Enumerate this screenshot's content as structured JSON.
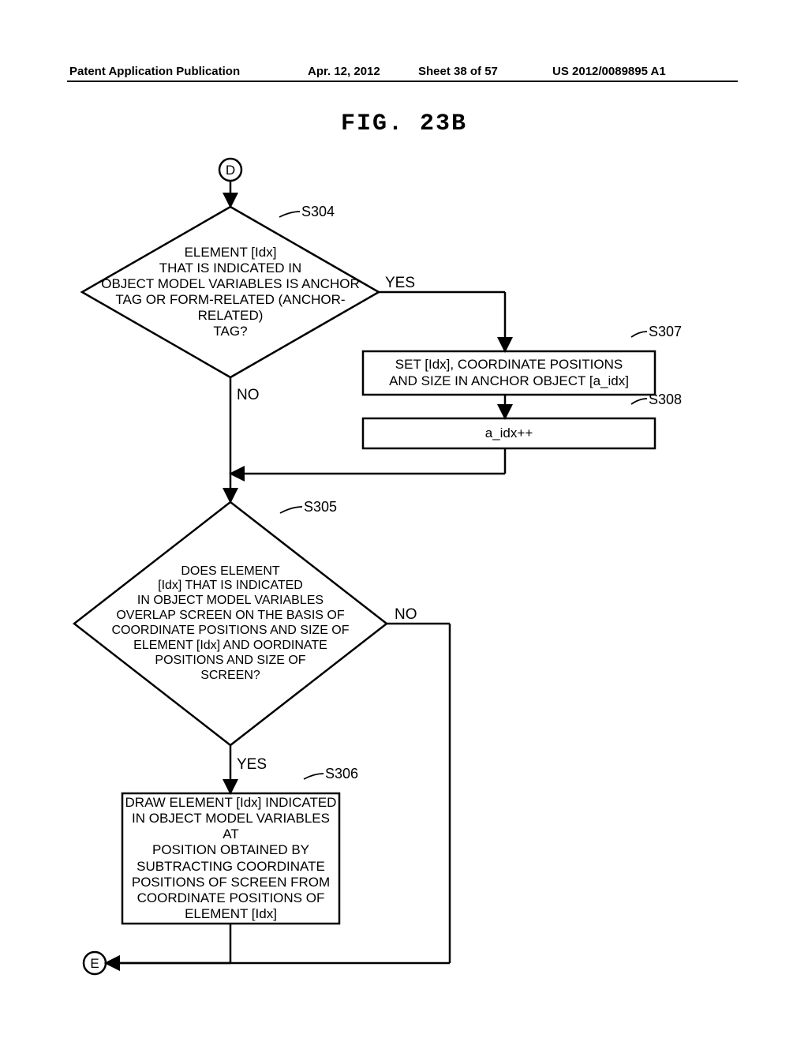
{
  "header": {
    "publication_label": "Patent Application Publication",
    "date": "Apr. 12, 2012",
    "sheet": "Sheet 38 of 57",
    "number": "US 2012/0089895 A1"
  },
  "figure_title": "FIG. 23B",
  "connectors": {
    "top": "D",
    "bottom": "E"
  },
  "steps": {
    "s304": {
      "label": "S304",
      "text": "ELEMENT [Idx]\nTHAT IS INDICATED IN\nOBJECT MODEL VARIABLES IS ANCHOR\nTAG OR FORM-RELATED (ANCHOR-\nRELATED)\nTAG?"
    },
    "s305": {
      "label": "S305",
      "text": "DOES ELEMENT\n[Idx] THAT IS INDICATED\nIN OBJECT MODEL VARIABLES\nOVERLAP SCREEN ON THE BASIS OF\nCOORDINATE POSITIONS AND SIZE OF\nELEMENT [Idx] AND OORDINATE\nPOSITIONS AND SIZE OF\nSCREEN?"
    },
    "s306": {
      "label": "S306",
      "text": "DRAW ELEMENT [Idx] INDICATED\nIN OBJECT MODEL VARIABLES AT\nPOSITION OBTAINED BY\nSUBTRACTING COORDINATE\nPOSITIONS OF SCREEN FROM\nCOORDINATE POSITIONS OF\nELEMENT [Idx]"
    },
    "s307": {
      "label": "S307",
      "text": "SET [Idx], COORDINATE POSITIONS\nAND SIZE IN ANCHOR OBJECT [a_idx]"
    },
    "s308": {
      "label": "S308",
      "text": "a_idx++"
    }
  },
  "branches": {
    "s304_yes": "YES",
    "s304_no": "NO",
    "s305_yes": "YES",
    "s305_no": "NO"
  },
  "style": {
    "stroke": "#000000",
    "stroke_width": 2.5,
    "bg": "#ffffff",
    "font_size_node": 17,
    "font_size_label": 18
  }
}
